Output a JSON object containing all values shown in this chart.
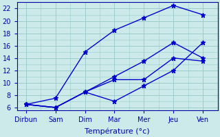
{
  "x_labels": [
    "Dirbun",
    "Sam",
    "Dim",
    "Mar",
    "Mer",
    "Jeu",
    "Ven"
  ],
  "x_positions": [
    0,
    1,
    2,
    3,
    4,
    5,
    6
  ],
  "lines": [
    [
      6.5,
      6.0,
      8.5,
      11.0,
      13.5,
      16.5,
      14.0
    ],
    [
      6.5,
      6.0,
      8.5,
      10.5,
      10.5,
      14.0,
      13.5
    ],
    [
      6.5,
      7.5,
      15.0,
      18.5,
      20.5,
      22.5,
      21.0
    ],
    [
      6.5,
      6.0,
      8.5,
      7.0,
      9.5,
      12.0,
      16.5
    ]
  ],
  "line_color": "#0000CC",
  "marker": "*",
  "markersize": 5,
  "linewidth": 1.0,
  "ylim": [
    5.5,
    23
  ],
  "xlim": [
    -0.3,
    6.5
  ],
  "yticks": [
    6,
    8,
    10,
    12,
    14,
    16,
    18,
    20,
    22
  ],
  "xlabel": "Température (°c)",
  "background_color": "#cceaea",
  "grid_color": "#99cccc",
  "axis_color": "#0000AA",
  "tick_fontsize": 7,
  "label_fontsize": 8
}
